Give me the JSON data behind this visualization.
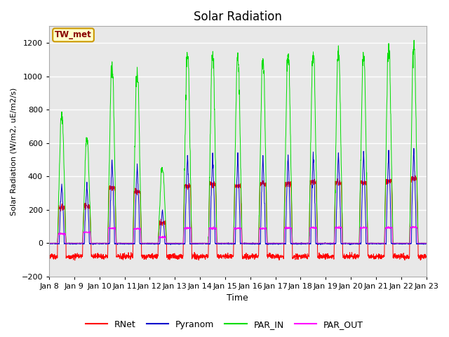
{
  "title": "Solar Radiation",
  "ylabel": "Solar Radiation (W/m2, uE/m2/s)",
  "xlabel": "Time",
  "ylim": [
    -200,
    1300
  ],
  "yticks": [
    -200,
    0,
    200,
    400,
    600,
    800,
    1000,
    1200
  ],
  "background_color": "#e8e8e8",
  "fig_bg_color": "#ffffff",
  "grid_color": "#ffffff",
  "station_label": "TW_met",
  "station_box_facecolor": "#ffffcc",
  "station_box_edgecolor": "#cc9900",
  "station_text_color": "#880000",
  "legend_entries": [
    "RNet",
    "Pyranom",
    "PAR_IN",
    "PAR_OUT"
  ],
  "line_colors": [
    "#ff0000",
    "#0000cc",
    "#00dd00",
    "#ff00ff"
  ],
  "x_tick_labels": [
    "Jan 8",
    "Jan 9",
    "Jan 10",
    "Jan 11",
    "Jan 12",
    "Jan 13",
    "Jan 14",
    "Jan 15",
    "Jan 16",
    "Jan 17",
    "Jan 18",
    "Jan 19",
    "Jan 20",
    "Jan 21",
    "Jan 22",
    "Jan 23"
  ],
  "num_days": 15,
  "points_per_day": 144,
  "par_in_peaks": [
    770,
    620,
    1060,
    1020,
    450,
    1130,
    1130,
    1110,
    1110,
    1130,
    1130,
    1150,
    1130,
    1160,
    1190
  ],
  "pyranom_peaks": [
    360,
    350,
    505,
    470,
    200,
    530,
    530,
    525,
    525,
    535,
    540,
    545,
    545,
    555,
    570
  ],
  "rnet_peaks": [
    210,
    220,
    330,
    310,
    120,
    340,
    355,
    345,
    355,
    355,
    365,
    365,
    365,
    370,
    385
  ],
  "par_out_peaks": [
    55,
    65,
    90,
    85,
    35,
    90,
    90,
    88,
    88,
    90,
    92,
    92,
    92,
    92,
    95
  ]
}
